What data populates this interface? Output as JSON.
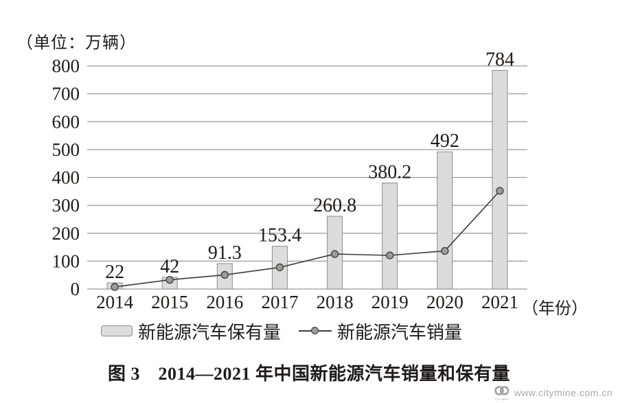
{
  "unit_label": "（单位：万辆）",
  "axis_suffix": "（年份）",
  "caption": "图 3　2014—2021 年中国新能源汽车销量和保有量",
  "watermark": {
    "text": "www.citymine.com.cn",
    "logo_caption": "CITY MINE"
  },
  "colors": {
    "bar_fill": "#dcdcdc",
    "bar_border": "#8a8a8a",
    "line": "#3f3a36",
    "marker_fill": "#9c9c9c",
    "grid": "#999999",
    "text": "#1f1b18",
    "watermark": "#a8a8a8"
  },
  "chart_data": {
    "type": "bar",
    "title": "图 3 2014—2021 年中国新能源汽车销量和保有量",
    "unit_label": "（单位：万辆）",
    "x_axis_suffix": "（年份）",
    "categories": [
      "2014",
      "2015",
      "2016",
      "2017",
      "2018",
      "2019",
      "2020",
      "2021"
    ],
    "series": [
      {
        "name": "新能源汽车保有量",
        "type": "bar",
        "values": [
          22,
          42,
          91.3,
          153.4,
          260.8,
          380.2,
          492,
          784
        ],
        "data_labels_shown": true
      },
      {
        "name": "新能源汽车销量",
        "type": "line",
        "values": [
          7.5,
          33,
          50.7,
          77.7,
          125.6,
          120.6,
          136.7,
          352
        ],
        "data_labels_shown": false
      }
    ],
    "ylim": [
      0,
      800
    ],
    "ytick_step": 100,
    "grid": true,
    "legend_position": "bottom"
  }
}
